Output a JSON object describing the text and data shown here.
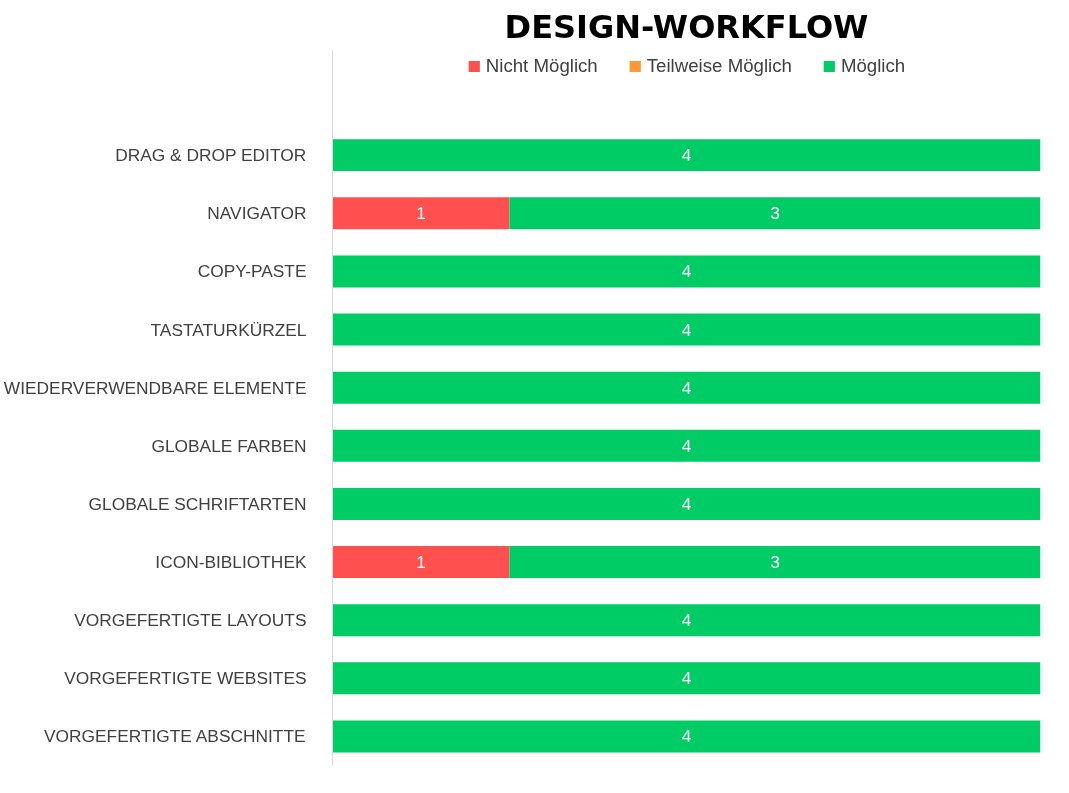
{
  "chart_data": {
    "type": "bar",
    "orientation": "horizontal",
    "stacked": true,
    "title": "DESIGN-WORKFLOW",
    "categories": [
      "DRAG & DROP EDITOR",
      "NAVIGATOR",
      "COPY-PASTE",
      "TASTATURKÜRZEL",
      "WIEDERVERWENDBARE ELEMENTE",
      "GLOBALE FARBEN",
      "GLOBALE SCHRIFTARTEN",
      "ICON-BIBLIOTHEK",
      "VORGEFERTIGTE LAYOUTS",
      "VORGEFERTIGTE WEBSITES",
      "VORGEFERTIGTE ABSCHNITTE"
    ],
    "series": [
      {
        "name": "Nicht Möglich",
        "color": "#ff5050",
        "values": [
          null,
          1,
          null,
          null,
          null,
          null,
          null,
          1,
          null,
          null,
          null
        ]
      },
      {
        "name": "Teilweise Möglich",
        "color": "#ff9933",
        "values": [
          null,
          null,
          null,
          null,
          null,
          null,
          null,
          null,
          null,
          null,
          null
        ]
      },
      {
        "name": "Möglich",
        "color": "#00cc66",
        "values": [
          4,
          3,
          4,
          4,
          4,
          4,
          4,
          3,
          4,
          4,
          4
        ]
      }
    ],
    "xlim": [
      0,
      4
    ],
    "tick_labels": "y",
    "legend": "top",
    "data_labels": true
  }
}
